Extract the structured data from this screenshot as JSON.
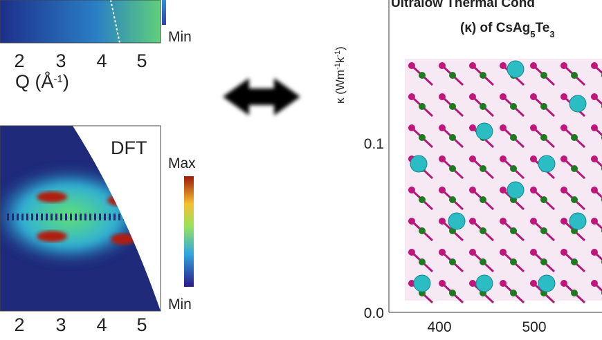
{
  "top_panel": {
    "colorbar_min": "Min",
    "x_ticks": [
      "2",
      "3",
      "4",
      "5"
    ],
    "x_label": [
      "Q (Å",
      "-1",
      ")"
    ]
  },
  "bottom_panel": {
    "label": "DFT",
    "colorbar_max": "Max",
    "colorbar_min": "Min",
    "x_ticks": [
      "2",
      "3",
      "4",
      "5"
    ]
  },
  "right_panel": {
    "title_line1": "Ultralow Thermal Cond",
    "title_line2": [
      "(κ) of CsAg",
      "5",
      "Te",
      "3"
    ],
    "y_label": [
      "κ (Wm",
      "-1",
      "k",
      "-1",
      ")"
    ],
    "y_ticks": [
      "0.1",
      "0.0"
    ],
    "x_ticks": [
      "400",
      "500"
    ]
  }
}
